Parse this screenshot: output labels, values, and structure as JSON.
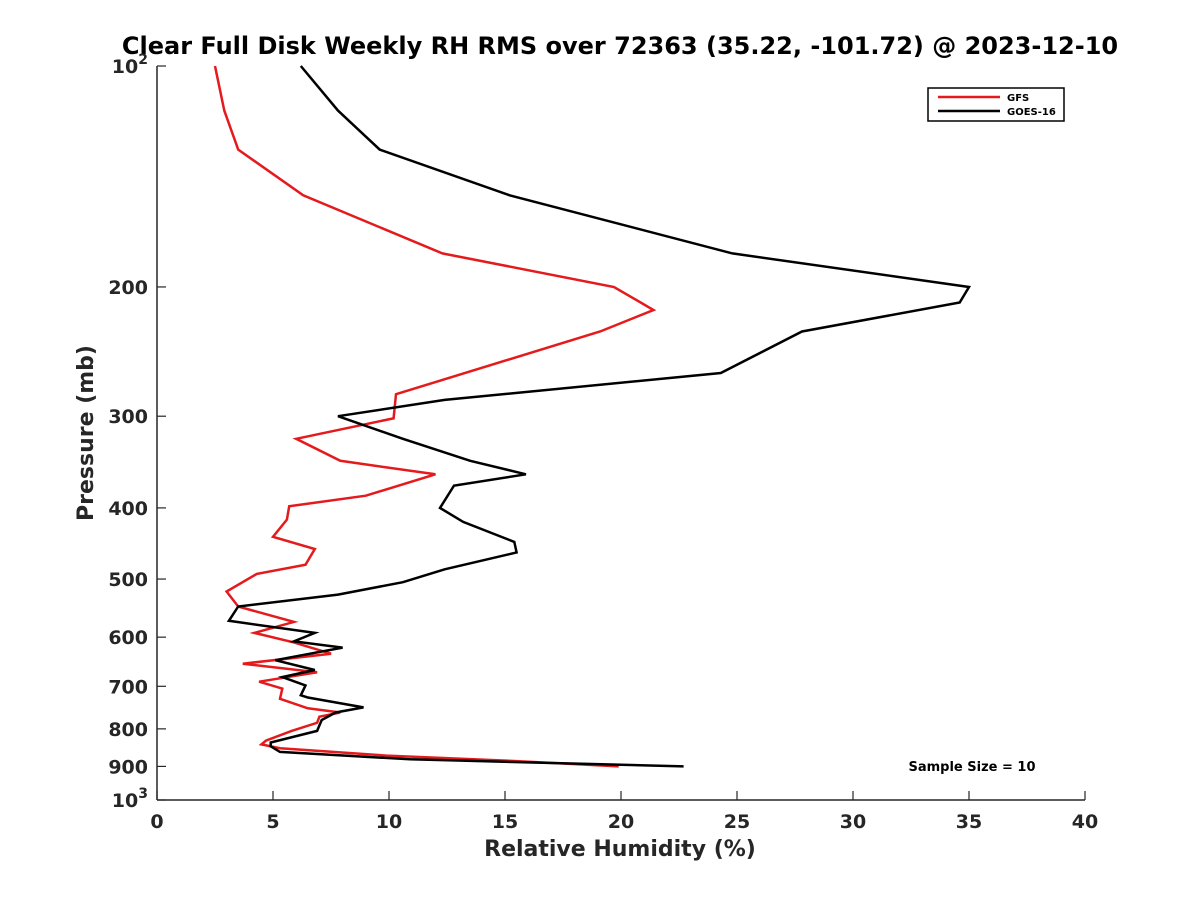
{
  "chart_data": {
    "type": "line",
    "title": "Clear Full Disk Weekly RH RMS over 72363 (35.22, -101.72) @ 2023-12-10",
    "xlabel": "Relative Humidity (%)",
    "ylabel": "Pressure (mb)",
    "xlim": [
      0,
      40
    ],
    "ylim": [
      100,
      1000
    ],
    "yscale": "log",
    "y_reversed": true,
    "xticks": [
      0,
      5,
      10,
      15,
      20,
      25,
      30,
      35,
      40
    ],
    "yticks": [
      {
        "value": 100,
        "base": "10",
        "exp": "2"
      },
      {
        "value": 200,
        "label": "200"
      },
      {
        "value": 300,
        "label": "300"
      },
      {
        "value": 400,
        "label": "400"
      },
      {
        "value": 500,
        "label": "500"
      },
      {
        "value": 600,
        "label": "600"
      },
      {
        "value": 700,
        "label": "700"
      },
      {
        "value": 800,
        "label": "800"
      },
      {
        "value": 900,
        "label": "900"
      },
      {
        "value": 1000,
        "base": "10",
        "exp": "3"
      }
    ],
    "legend": {
      "location": "top-right",
      "entries": [
        "GFS",
        "GOES-16"
      ]
    },
    "annotation": "Sample Size = 10",
    "colors": {
      "GFS": "#e41a1c",
      "GOES-16": "#000000",
      "axis": "#262626"
    },
    "series": [
      {
        "name": "GFS",
        "color": "#e41a1c",
        "x": [
          2.5,
          2.9,
          3.5,
          6.3,
          12.3,
          19.7,
          21.4,
          19.1,
          10.3,
          10.2,
          6.0,
          7.9,
          12.0,
          9.0,
          5.7,
          5.6,
          5.0,
          6.8,
          6.4,
          4.3,
          3.0,
          3.5,
          5.9,
          4.2,
          5.9,
          7.5,
          3.7,
          6.9,
          4.4,
          5.4,
          5.3,
          6.5,
          7.9,
          7.0,
          6.9,
          5.8,
          4.7,
          4.5,
          5.3,
          9.9,
          15.5,
          19.9
        ],
        "y": [
          100,
          115,
          130,
          150,
          180,
          200,
          215,
          230,
          280,
          302,
          322,
          345,
          360,
          385,
          398,
          415,
          438,
          455,
          478,
          492,
          520,
          545,
          572,
          592,
          610,
          632,
          652,
          670,
          690,
          705,
          728,
          750,
          760,
          770,
          785,
          805,
          830,
          840,
          850,
          870,
          885,
          900
        ]
      },
      {
        "name": "GOES-16",
        "color": "#000000",
        "x": [
          6.2,
          7.8,
          9.6,
          15.2,
          24.8,
          35.0,
          34.6,
          27.8,
          24.3,
          12.4,
          7.8,
          10.6,
          13.5,
          15.9,
          12.8,
          12.2,
          13.2,
          15.4,
          15.5,
          12.4,
          10.6,
          7.8,
          3.5,
          3.1,
          6.8,
          5.9,
          8.0,
          5.1,
          6.8,
          5.4,
          6.4,
          6.2,
          6.5,
          8.9,
          7.7,
          7.1,
          6.9,
          4.9,
          4.9,
          5.3,
          10.9,
          22.7
        ],
        "y": [
          100,
          115,
          130,
          150,
          180,
          200,
          210,
          230,
          262,
          285,
          300,
          322,
          345,
          360,
          373,
          400,
          418,
          445,
          460,
          485,
          505,
          525,
          545,
          570,
          592,
          608,
          620,
          645,
          665,
          680,
          698,
          720,
          725,
          748,
          760,
          778,
          805,
          835,
          845,
          860,
          880,
          900
        ]
      }
    ]
  }
}
